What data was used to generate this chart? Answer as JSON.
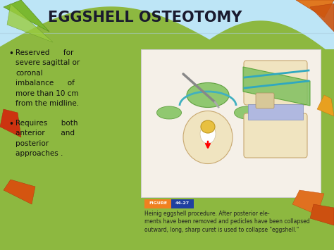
{
  "title": "EGGSHELL OSTEOTOMY",
  "title_fontsize": 15,
  "title_color": "#1a1a2e",
  "title_weight": "bold",
  "bg_color": "#a8d8ea",
  "bg_top_color": "#cceeff",
  "grass_color": "#8db840",
  "grass_dark": "#7aa830",
  "bullet_points": [
    "Reserved      for\nsevere sagittal or\ncoronal\nimbalance      of\nmore than 10 cm\nfrom the midline.",
    "Requires      both\nanterior       and\nposterior\napproaches ."
  ],
  "bullet_color": "#111111",
  "bullet_fontsize": 7.5,
  "figure_caption_line1": "Heinig eggshell procedure. After posterior ele-",
  "figure_caption_line2": "ments have been removed and pedicles have been collapsed",
  "figure_caption_line3": "outward, long, sharp curet is used to collapse \"eggshell.\"",
  "caption_fontsize": 5.5,
  "figsize": [
    4.74,
    3.55
  ],
  "dpi": 100
}
